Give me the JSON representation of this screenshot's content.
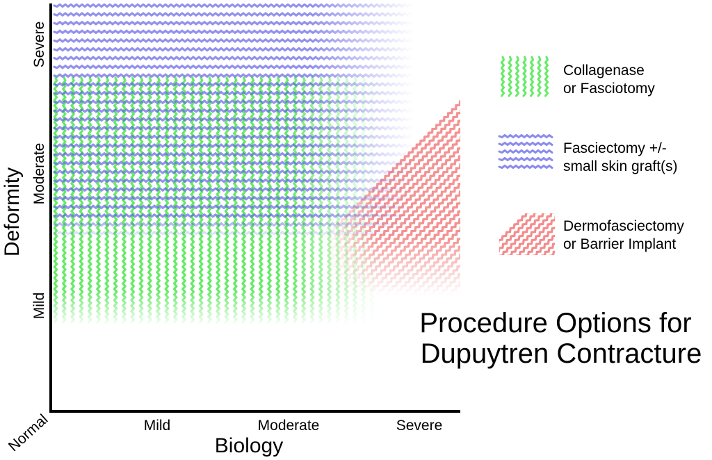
{
  "title": {
    "line1": "Procedure Options for",
    "line2": "Dupuytren Contracture"
  },
  "axes": {
    "x_label": "Biology",
    "y_label": "Deformity",
    "origin_label": "Normal",
    "x_ticks": [
      "Mild",
      "Moderate",
      "Severe"
    ],
    "y_ticks": [
      "Mild",
      "Moderate",
      "Severe"
    ]
  },
  "legend": [
    {
      "pattern": "vertical-wavy",
      "color": "#3ee63e",
      "line1": "Collagenase",
      "line2": "or Fasciotomy"
    },
    {
      "pattern": "horizontal-wavy",
      "color": "#6464e6",
      "line1": "Fasciectomy +/-",
      "line2": "small skin graft(s)"
    },
    {
      "pattern": "diagonal-wavy",
      "color": "#f06464",
      "line1": "Dermofasciectomy",
      "line2": "or Barrier Implant"
    }
  ],
  "regions": {
    "green_zone": "Collagenase or Fasciotomy",
    "blue_zone": "Fasciectomy +/- small skin graft(s)",
    "red_zone": "Dermofasciectomy or Barrier Implant"
  }
}
